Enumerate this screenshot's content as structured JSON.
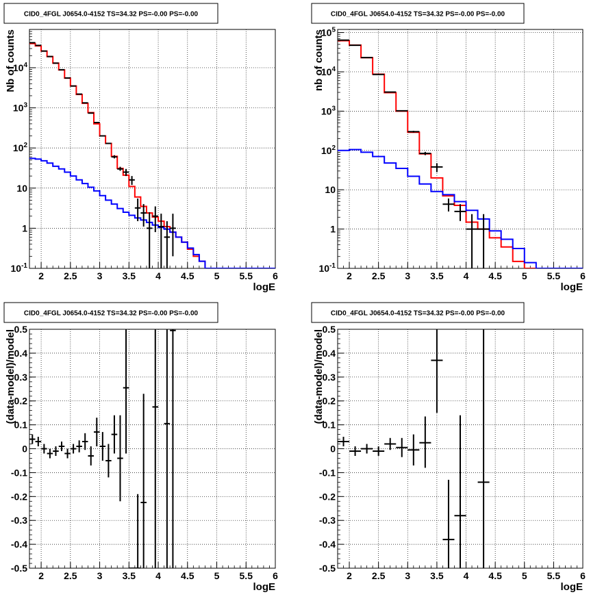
{
  "chart_data": [
    {
      "type": "line",
      "title": "CID0_4FGL J0654.0-4152 TS=34.32 PS=-0.00 PS=-0.00",
      "xlabel": "logE",
      "ylabel": "Nb of counts",
      "y_scale": "log",
      "xlim": [
        1.8,
        6
      ],
      "ylim": [
        0.1,
        90000
      ],
      "grid": true,
      "x_ticks": [
        "2",
        "2.5",
        "3",
        "3.5",
        "4",
        "4.5",
        "5",
        "5.5",
        "6"
      ],
      "y_ticks": [
        "10^-1",
        "1",
        "10",
        "10^2",
        "10^3",
        "10^4"
      ],
      "series": [
        {
          "color": "#ff0000",
          "step_edges": [
            1.8,
            1.9,
            2.0,
            2.1,
            2.2,
            2.3,
            2.4,
            2.5,
            2.6,
            2.7,
            2.8,
            2.9,
            3.0,
            3.1,
            3.2,
            3.3,
            3.4,
            3.5,
            3.6,
            3.7,
            3.8,
            3.9,
            4.0,
            4.1,
            4.2,
            4.3,
            4.4,
            4.5,
            4.6,
            4.7,
            4.8,
            4.9,
            5.0,
            5.1,
            5.2,
            5.3,
            5.4,
            5.5,
            5.6,
            5.7,
            5.8,
            5.9,
            6.0
          ],
          "values": [
            40000,
            35000,
            26000,
            19000,
            13000,
            8800,
            5500,
            3500,
            2150,
            1300,
            760,
            400,
            200,
            130,
            62,
            31,
            21,
            11,
            6,
            3.5,
            2.4,
            1.9,
            1.5,
            1.1,
            0.8,
            0.6,
            0.45,
            0.3,
            0.2,
            0.15,
            0.1,
            0.1,
            0.1,
            0.1,
            0.1,
            0.1,
            0.1,
            0.1,
            0.1,
            0.1,
            0.1,
            0.1
          ]
        },
        {
          "color": "#0000ff",
          "step_edges": [
            1.8,
            1.9,
            2.0,
            2.1,
            2.2,
            2.3,
            2.4,
            2.5,
            2.6,
            2.7,
            2.8,
            2.9,
            3.0,
            3.1,
            3.2,
            3.3,
            3.4,
            3.5,
            3.6,
            3.7,
            3.8,
            3.9,
            4.0,
            4.1,
            4.2,
            4.3,
            4.4,
            4.5,
            4.6,
            4.7,
            4.8,
            4.9,
            5.0,
            5.1,
            5.2,
            5.3,
            5.4,
            5.5,
            5.6,
            5.7,
            5.8,
            5.9,
            6.0
          ],
          "values": [
            55,
            53,
            48,
            42,
            35,
            30,
            25,
            20,
            16,
            13,
            10.5,
            8.5,
            6.5,
            5,
            4,
            3.1,
            2.5,
            2.1,
            1.8,
            1.6,
            1.4,
            1.2,
            1.05,
            0.95,
            0.8,
            0.6,
            0.45,
            0.32,
            0.22,
            0.15,
            0.1,
            0.1,
            0.1,
            0.1,
            0.1,
            0.1,
            0.1,
            0.1,
            0.1,
            0.1,
            0.1,
            0.1
          ]
        },
        {
          "color": "#000000",
          "kind": "points",
          "x": [
            1.85,
            1.95,
            2.05,
            2.15,
            2.25,
            2.35,
            2.45,
            2.55,
            2.65,
            2.75,
            2.85,
            2.95,
            3.05,
            3.15,
            3.25,
            3.35,
            3.45,
            3.55,
            3.65,
            3.75,
            3.85,
            3.95,
            4.05,
            4.15,
            4.25
          ],
          "y": [
            42000,
            36000,
            26000,
            19000,
            13000,
            8900,
            5550,
            3500,
            2200,
            1330,
            740,
            430,
            200,
            130,
            60,
            30,
            25,
            16,
            3.2,
            2.4,
            1,
            2,
            1.1,
            0.6,
            1
          ],
          "y_low": [
            41000,
            35000,
            25500,
            18700,
            12800,
            8800,
            5450,
            3450,
            2150,
            1300,
            720,
            420,
            195,
            125,
            55,
            27,
            20,
            12,
            1.5,
            1.1,
            0.1,
            0.8,
            0.1,
            0.1,
            0.2
          ],
          "y_high": [
            43000,
            37000,
            26500,
            19300,
            13200,
            9000,
            5650,
            3550,
            2250,
            1360,
            760,
            440,
            205,
            135,
            66,
            34,
            30,
            20,
            5.5,
            4,
            2.5,
            3.5,
            2.3,
            1.5,
            2.3
          ]
        }
      ]
    },
    {
      "type": "line",
      "title": "CID0_4FGL J0654.0-4152 TS=34.32 PS=-0.00 PS=-0.00",
      "xlabel": "logE",
      "ylabel": "nb of counts",
      "y_scale": "log",
      "xlim": [
        1.8,
        6
      ],
      "ylim": [
        0.1,
        120000
      ],
      "grid": true,
      "x_ticks": [
        "2",
        "2.5",
        "3",
        "3.5",
        "4",
        "4.5",
        "5",
        "5.5",
        "6"
      ],
      "y_ticks": [
        "10^-1",
        "1",
        "10",
        "10^2",
        "10^3",
        "10^4",
        "10^5"
      ],
      "series": [
        {
          "color": "#ff0000",
          "step_edges": [
            1.8,
            2.0,
            2.2,
            2.4,
            2.6,
            2.8,
            3.0,
            3.2,
            3.4,
            3.6,
            3.8,
            4.0,
            4.2,
            4.4,
            4.6,
            4.8,
            5.0,
            5.2,
            5.4,
            5.6,
            5.8,
            6.0
          ],
          "values": [
            62000,
            48000,
            23000,
            8700,
            2950,
            1000,
            290,
            82,
            20,
            7,
            4,
            1.5,
            1,
            0.6,
            0.35,
            0.15,
            0.1,
            0.1,
            0.1,
            0.1,
            0.1
          ]
        },
        {
          "color": "#0000ff",
          "step_edges": [
            1.8,
            2.0,
            2.2,
            2.4,
            2.6,
            2.8,
            3.0,
            3.2,
            3.4,
            3.6,
            3.8,
            4.0,
            4.2,
            4.4,
            4.6,
            4.8,
            5.0,
            5.2,
            5.4,
            5.6,
            5.8,
            6.0
          ],
          "values": [
            100,
            105,
            90,
            70,
            48,
            35,
            22,
            14,
            9,
            7.5,
            5,
            3,
            1.8,
            0.9,
            0.55,
            0.32,
            0.14,
            0.1,
            0.1,
            0.1,
            0.1
          ]
        },
        {
          "color": "#000000",
          "kind": "points",
          "x": [
            1.9,
            2.1,
            2.3,
            2.5,
            2.7,
            2.9,
            3.1,
            3.3,
            3.5,
            3.7,
            3.9,
            4.1,
            4.3
          ],
          "y": [
            64000,
            47500,
            23100,
            8600,
            3050,
            1020,
            300,
            84,
            38,
            4.3,
            2.8,
            1,
            1
          ],
          "y_low": [
            63000,
            47000,
            22800,
            8450,
            2980,
            990,
            285,
            76,
            28,
            2.8,
            1.6,
            0.1,
            0.1
          ],
          "y_high": [
            65000,
            48000,
            23400,
            8750,
            3120,
            1050,
            315,
            92,
            47,
            6,
            4.3,
            2.4,
            2.4
          ]
        }
      ]
    },
    {
      "type": "scatter",
      "title": "CID0_4FGL J0654.0-4152 TS=34.32 PS=-0.00 PS=-0.00",
      "xlabel": "logE",
      "ylabel": "(data-model)/model",
      "xlim": [
        1.8,
        6
      ],
      "ylim": [
        -0.5,
        0.5
      ],
      "grid": true,
      "x_ticks": [
        "2",
        "2.5",
        "3",
        "3.5",
        "4",
        "4.5",
        "5",
        "5.5",
        "6"
      ],
      "y_ticks": [
        "-0.5",
        "-0.4",
        "-0.3",
        "-0.2",
        "-0.1",
        "0",
        "0.1",
        "0.2",
        "0.3",
        "0.4",
        "0.5"
      ],
      "series": [
        {
          "color": "#000000",
          "x": [
            1.85,
            1.95,
            2.05,
            2.15,
            2.25,
            2.35,
            2.45,
            2.55,
            2.65,
            2.75,
            2.85,
            2.95,
            3.05,
            3.15,
            3.25,
            3.35,
            3.45,
            3.55,
            3.65,
            3.75,
            3.95,
            4.15,
            4.25
          ],
          "y": [
            0.04,
            0.03,
            0.0,
            -0.02,
            -0.01,
            0.01,
            -0.02,
            0.0,
            0.01,
            0.03,
            -0.03,
            0.07,
            0.01,
            -0.05,
            0.06,
            -0.04,
            0.255,
            -0.5,
            -0.5,
            -0.225,
            0.175,
            0.105,
            0.495
          ],
          "y_low": [
            0.02,
            0.01,
            -0.02,
            -0.04,
            -0.03,
            -0.01,
            -0.04,
            -0.02,
            -0.015,
            -0.005,
            -0.07,
            0.01,
            -0.05,
            -0.12,
            -0.02,
            -0.22,
            -0.02,
            -0.5,
            -0.5,
            -0.5,
            -0.5,
            -0.5,
            -0.5
          ],
          "y_high": [
            0.06,
            0.05,
            0.02,
            0.0,
            0.01,
            0.03,
            0.0,
            0.02,
            0.035,
            0.065,
            0.01,
            0.13,
            0.07,
            0.02,
            0.14,
            0.14,
            0.5,
            -0.5,
            -0.19,
            0.23,
            0.5,
            0.5,
            0.5
          ]
        }
      ]
    },
    {
      "type": "scatter",
      "title": "CID0_4FGL J0654.0-4152 TS=34.32 PS=-0.00 PS=-0.00",
      "xlabel": "logE",
      "ylabel": "(data-model)/model",
      "xlim": [
        1.8,
        6
      ],
      "ylim": [
        -0.5,
        0.5
      ],
      "grid": true,
      "x_ticks": [
        "2",
        "2.5",
        "3",
        "3.5",
        "4",
        "4.5",
        "5",
        "5.5",
        "6"
      ],
      "y_ticks": [
        "-0.5",
        "-0.4",
        "-0.3",
        "-0.2",
        "-0.1",
        "0",
        "0.1",
        "0.2",
        "0.3",
        "0.4",
        "0.5"
      ],
      "series": [
        {
          "color": "#000000",
          "x": [
            1.9,
            2.1,
            2.3,
            2.5,
            2.7,
            2.9,
            3.1,
            3.3,
            3.5,
            3.7,
            3.9,
            4.3
          ],
          "y": [
            0.03,
            -0.01,
            0.0,
            -0.01,
            0.02,
            0.005,
            -0.005,
            0.025,
            0.37,
            -0.38,
            -0.28,
            -0.14
          ],
          "y_low": [
            0.01,
            -0.03,
            -0.02,
            -0.03,
            -0.005,
            -0.035,
            -0.07,
            -0.08,
            0.15,
            -0.5,
            -0.5,
            -0.5
          ],
          "y_high": [
            0.05,
            0.01,
            0.02,
            0.01,
            0.045,
            0.045,
            0.06,
            0.135,
            0.5,
            -0.13,
            0.14,
            0.5
          ]
        }
      ]
    }
  ]
}
